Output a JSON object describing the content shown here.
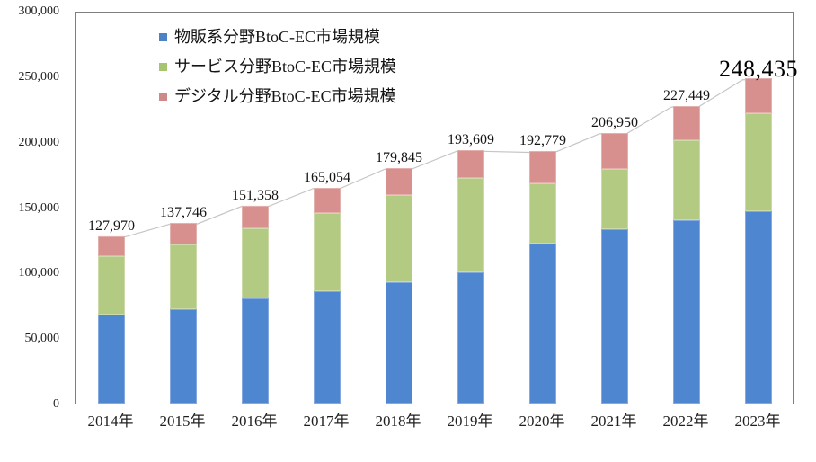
{
  "chart_data": {
    "type": "bar",
    "stacked": true,
    "title": "",
    "categories": [
      "2014年",
      "2015年",
      "2016年",
      "2017年",
      "2018年",
      "2019年",
      "2020年",
      "2021年",
      "2022年",
      "2023年"
    ],
    "series": [
      {
        "key": "physical-goods",
        "name": "物販系分野BtoC-EC市場規模",
        "fill": "#4f86d0",
        "border": "#84a9df",
        "legend_color": "#4d82c6",
        "values": [
          68043,
          72398,
          80043,
          86008,
          92992,
          100515,
          122333,
          132865,
          139997,
          146760
        ]
      },
      {
        "key": "service",
        "name": "サービス分野BtoC-EC市場規模",
        "fill": "#b2ca82",
        "border": "#ccdaaa",
        "legend_color": "#a6c472",
        "values": [
          44816,
          49014,
          53532,
          59568,
          66471,
          71672,
          45832,
          46424,
          61477,
          75169
        ]
      },
      {
        "key": "digital",
        "name": "デジタル分野BtoC-EC市場規模",
        "fill": "#d8908e",
        "border": "#e3b0ad",
        "legend_color": "#cd8a88",
        "values": [
          15111,
          16334,
          17783,
          19478,
          20382,
          21422,
          24614,
          27661,
          25975,
          26506
        ]
      }
    ],
    "totals": [
      127970,
      137746,
      151358,
      165054,
      179845,
      193609,
      192779,
      206950,
      227449,
      248435
    ],
    "total_labels": [
      "127,970",
      "137,746",
      "151,358",
      "165,054",
      "179,845",
      "193,609",
      "192,779",
      "206,950",
      "227,449",
      "248,435"
    ],
    "emphasized_label_index": 9,
    "y_axis": {
      "min": 0,
      "max": 300000,
      "tick_values": [
        0,
        50000,
        100000,
        150000,
        200000,
        250000,
        300000
      ],
      "tick_labels": [
        "0",
        "50,000",
        "100,000",
        "150,000",
        "200,000",
        "250,000",
        "300,000"
      ]
    },
    "grid": false,
    "legend_position": "top-inside",
    "connector_line_color": "#c6c6c6",
    "frame_color": "#7f7f7f"
  }
}
